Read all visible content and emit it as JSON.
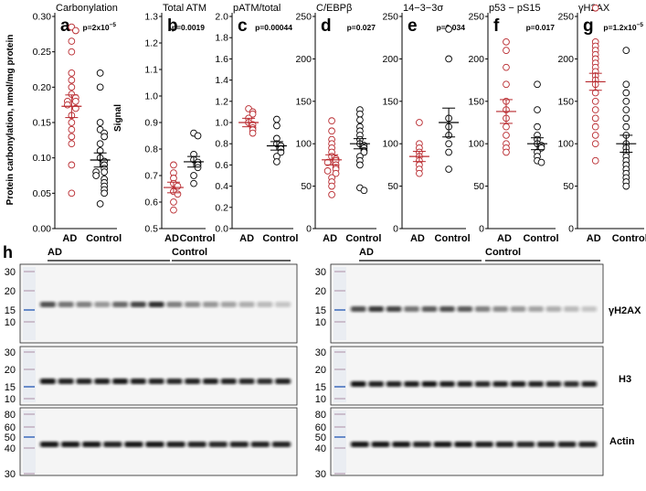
{
  "shared_labels": {
    "ad": "AD",
    "control": "Control"
  },
  "y_axis_first_label": "Protein carbonylation, nmol/mg protein",
  "y_axis_second_label": "Signal",
  "chart_data": [
    {
      "type": "scatter",
      "letter": "a",
      "title": "Carbonylation",
      "pvalue": "p=2x10",
      "pvalue_exp": "−5",
      "ylim": [
        0,
        0.3
      ],
      "ticks": [
        "0.00",
        "0.05",
        "0.10",
        "0.15",
        "0.20",
        "0.25",
        "0.30"
      ],
      "tick_values": [
        0,
        0.05,
        0.1,
        0.15,
        0.2,
        0.25,
        0.3
      ],
      "categories": [
        "AD",
        "Control"
      ],
      "series": [
        {
          "name": "AD",
          "mean": 0.173,
          "sem": 0.016,
          "values": [
            0.285,
            0.28,
            0.265,
            0.25,
            0.22,
            0.21,
            0.2,
            0.19,
            0.185,
            0.18,
            0.18,
            0.175,
            0.17,
            0.16,
            0.15,
            0.14,
            0.13,
            0.12,
            0.09,
            0.05
          ]
        },
        {
          "name": "Control",
          "mean": 0.097,
          "sem": 0.01,
          "values": [
            0.22,
            0.2,
            0.15,
            0.14,
            0.135,
            0.13,
            0.12,
            0.11,
            0.1,
            0.095,
            0.09,
            0.085,
            0.08,
            0.08,
            0.075,
            0.07,
            0.065,
            0.06,
            0.055,
            0.05,
            0.035
          ]
        }
      ]
    },
    {
      "type": "scatter",
      "letter": "b",
      "title": "Total ATM",
      "pvalue": "p=0.0019",
      "ylim": [
        0.5,
        1.3
      ],
      "ticks": [
        "0.5",
        "0.6",
        "0.7",
        "0.8",
        "0.9",
        "1.0",
        "1.1",
        "1.2",
        "1.3"
      ],
      "tick_values": [
        0.5,
        0.6,
        0.7,
        0.8,
        0.9,
        1.0,
        1.1,
        1.2,
        1.3
      ],
      "categories": [
        "AD",
        "Control"
      ],
      "series": [
        {
          "name": "AD",
          "mean": 0.655,
          "sem": 0.02,
          "values": [
            0.74,
            0.71,
            0.69,
            0.67,
            0.66,
            0.64,
            0.63,
            0.6,
            0.57
          ]
        },
        {
          "name": "Control",
          "mean": 0.752,
          "sem": 0.02,
          "values": [
            0.86,
            0.85,
            0.78,
            0.76,
            0.75,
            0.74,
            0.73,
            0.7,
            0.67
          ]
        }
      ]
    },
    {
      "type": "scatter",
      "letter": "c",
      "title": "pATM/total",
      "pvalue": "p=0.00044",
      "ylim": [
        0,
        2.0
      ],
      "ticks": [
        "0.0",
        "0.2",
        "0.4",
        "0.6",
        "0.8",
        "1.0",
        "1.2",
        "1.4",
        "1.6",
        "1.8",
        "2.0"
      ],
      "tick_values": [
        0,
        0.2,
        0.4,
        0.6,
        0.8,
        1.0,
        1.2,
        1.4,
        1.6,
        1.8,
        2.0
      ],
      "categories": [
        "AD",
        "Control"
      ],
      "series": [
        {
          "name": "AD",
          "mean": 1.0,
          "sem": 0.04,
          "values": [
            1.13,
            1.1,
            1.08,
            1.04,
            1.0,
            0.98,
            0.95,
            0.93,
            0.9
          ]
        },
        {
          "name": "Control",
          "mean": 0.78,
          "sem": 0.04,
          "values": [
            1.03,
            0.97,
            0.85,
            0.8,
            0.78,
            0.75,
            0.72,
            0.68,
            0.63
          ]
        }
      ]
    },
    {
      "type": "scatter",
      "letter": "d",
      "title": "C/EBPβ",
      "pvalue": "p=0.027",
      "ylim": [
        0,
        250
      ],
      "ticks": [
        "0",
        "50",
        "100",
        "150",
        "200",
        "250"
      ],
      "tick_values": [
        0,
        50,
        100,
        150,
        200,
        250
      ],
      "categories": [
        "AD",
        "Control"
      ],
      "series": [
        {
          "name": "AD",
          "mean": 81,
          "sem": 6,
          "values": [
            127,
            115,
            105,
            100,
            95,
            90,
            85,
            82,
            80,
            78,
            75,
            72,
            70,
            68,
            65,
            60,
            55,
            50,
            40
          ]
        },
        {
          "name": "Control",
          "mean": 100,
          "sem": 6,
          "values": [
            140,
            135,
            128,
            120,
            115,
            110,
            105,
            100,
            98,
            95,
            92,
            90,
            85,
            80,
            75,
            48,
            45
          ]
        }
      ]
    },
    {
      "type": "scatter",
      "letter": "e",
      "title": "14−3−3σ",
      "pvalue": "p=0.034",
      "ylim": [
        0,
        250
      ],
      "ticks": [
        "0",
        "50",
        "100",
        "150",
        "200",
        "250"
      ],
      "tick_values": [
        0,
        50,
        100,
        150,
        200,
        250
      ],
      "categories": [
        "AD",
        "Control"
      ],
      "series": [
        {
          "name": "AD",
          "mean": 85,
          "sem": 6,
          "values": [
            125,
            100,
            95,
            90,
            85,
            80,
            75,
            70,
            65
          ]
        },
        {
          "name": "Control",
          "mean": 125,
          "sem": 17,
          "values": [
            235,
            200,
            130,
            120,
            110,
            100,
            90,
            70
          ]
        }
      ]
    },
    {
      "type": "scatter",
      "letter": "f",
      "title": "p53 − pS15",
      "pvalue": "p=0.017",
      "ylim": [
        0,
        250
      ],
      "ticks": [
        "0",
        "50",
        "100",
        "150",
        "200",
        "250"
      ],
      "tick_values": [
        0,
        50,
        100,
        150,
        200,
        250
      ],
      "categories": [
        "AD",
        "Control"
      ],
      "series": [
        {
          "name": "AD",
          "mean": 138,
          "sem": 14,
          "values": [
            220,
            210,
            190,
            170,
            150,
            140,
            130,
            120,
            110,
            100,
            95,
            90
          ]
        },
        {
          "name": "Control",
          "mean": 100,
          "sem": 7,
          "values": [
            170,
            140,
            120,
            110,
            105,
            100,
            98,
            95,
            90,
            85,
            80,
            78
          ]
        }
      ]
    },
    {
      "type": "scatter",
      "letter": "g",
      "title": "γH2AX",
      "pvalue": "p=1.2x10",
      "pvalue_exp": "−5",
      "ylim": [
        0,
        250
      ],
      "ticks": [
        "0",
        "50",
        "100",
        "150",
        "200",
        "250"
      ],
      "tick_values": [
        0,
        50,
        100,
        150,
        200,
        250
      ],
      "categories": [
        "AD",
        "Control"
      ],
      "series": [
        {
          "name": "AD",
          "mean": 173,
          "sem": 10,
          "values": [
            260,
            220,
            215,
            210,
            205,
            200,
            195,
            190,
            185,
            180,
            175,
            170,
            160,
            150,
            140,
            130,
            120,
            110,
            100,
            80
          ]
        },
        {
          "name": "Control",
          "mean": 100,
          "sem": 10,
          "values": [
            210,
            170,
            160,
            150,
            140,
            130,
            120,
            110,
            100,
            95,
            90,
            85,
            80,
            75,
            70,
            65,
            60,
            55,
            50
          ]
        }
      ]
    }
  ],
  "blots": {
    "panel_letter": "h",
    "left_group_labels": {
      "ad": "AD",
      "control": "Control"
    },
    "right_group_labels": {
      "ad": "AD",
      "control": "Control"
    },
    "row_labels": [
      "γH2AX",
      "H3",
      "Actin"
    ],
    "row1_markers": [
      "30",
      "20",
      "15",
      "10"
    ],
    "row2_markers": [
      "30",
      "20",
      "15",
      "10"
    ],
    "row3_markers": [
      "80",
      "60",
      "50",
      "40",
      "30"
    ]
  }
}
